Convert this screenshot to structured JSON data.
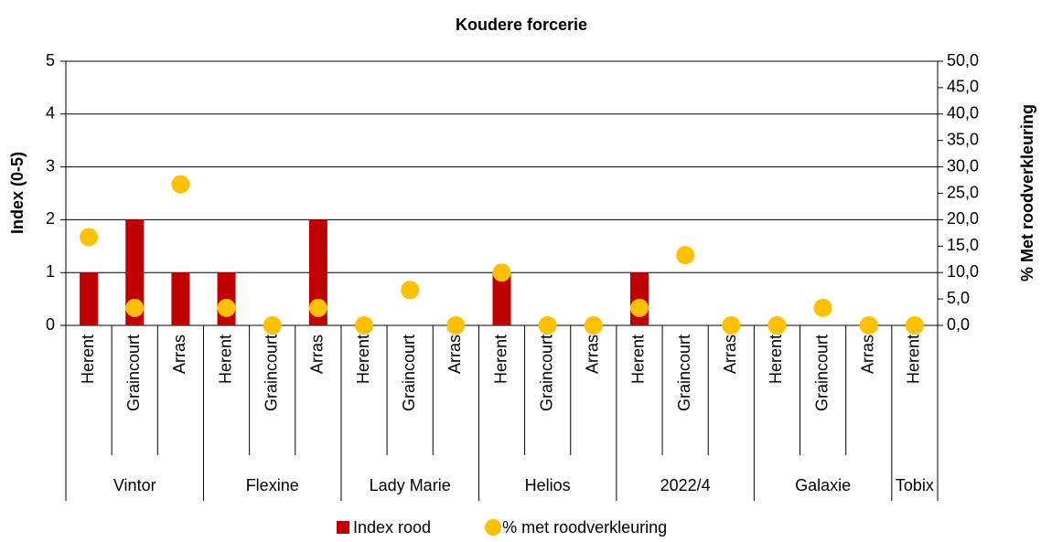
{
  "chart_data": {
    "type": "bar_scatter",
    "title": "Koudere forcerie",
    "y_label": "Index (0-5)",
    "y2_label": "% Met roodverkleuring",
    "category_groups": [
      {
        "name": "Vintor",
        "categories": [
          "Herent",
          "Graincourt",
          "Arras"
        ]
      },
      {
        "name": "Flexine",
        "categories": [
          "Herent",
          "Graincourt",
          "Arras"
        ]
      },
      {
        "name": "Lady Marie",
        "categories": [
          "Herent",
          "Graincourt",
          "Arras"
        ]
      },
      {
        "name": "Helios",
        "categories": [
          "Herent",
          "Graincourt",
          "Arras"
        ]
      },
      {
        "name": "2022/4",
        "categories": [
          "Herent",
          "Graincourt",
          "Arras"
        ]
      },
      {
        "name": "Galaxie",
        "categories": [
          "Herent",
          "Graincourt",
          "Arras"
        ]
      },
      {
        "name": "Tobix",
        "categories": [
          "Herent"
        ]
      }
    ],
    "series": [
      {
        "name": "Index rood",
        "color": "#c00000",
        "mark": "bar",
        "values": [
          1,
          2,
          1,
          1,
          0,
          2,
          0,
          0,
          0,
          1,
          0,
          0,
          1,
          0,
          0,
          0,
          0,
          0,
          0
        ]
      },
      {
        "name": "% met roodverkleuring",
        "color": "#ffc000",
        "mark": "dot",
        "axis": "y2",
        "values": [
          16.7,
          3.3,
          26.7,
          3.3,
          0,
          3.3,
          0,
          6.7,
          0,
          10,
          0,
          0,
          3.3,
          13.3,
          0,
          0,
          3.3,
          0,
          0
        ]
      }
    ],
    "ylim": [
      0,
      5
    ],
    "yticks": [
      0,
      1,
      2,
      3,
      4,
      5
    ],
    "y2lim": [
      0,
      50
    ],
    "y2ticks": [
      {
        "value": 0,
        "label": "0,0"
      },
      {
        "value": 5,
        "label": "5,0"
      },
      {
        "value": 10,
        "label": "10,0"
      },
      {
        "value": 15,
        "label": "15,0"
      },
      {
        "value": 20,
        "label": "20,0"
      },
      {
        "value": 25,
        "label": "25,0"
      },
      {
        "value": 30,
        "label": "30,0"
      },
      {
        "value": 35,
        "label": "35,0"
      },
      {
        "value": 40,
        "label": "40,0"
      },
      {
        "value": 45,
        "label": "45,0"
      },
      {
        "value": 50,
        "label": "50,0"
      }
    ],
    "grid": true,
    "legend": "bottom"
  }
}
